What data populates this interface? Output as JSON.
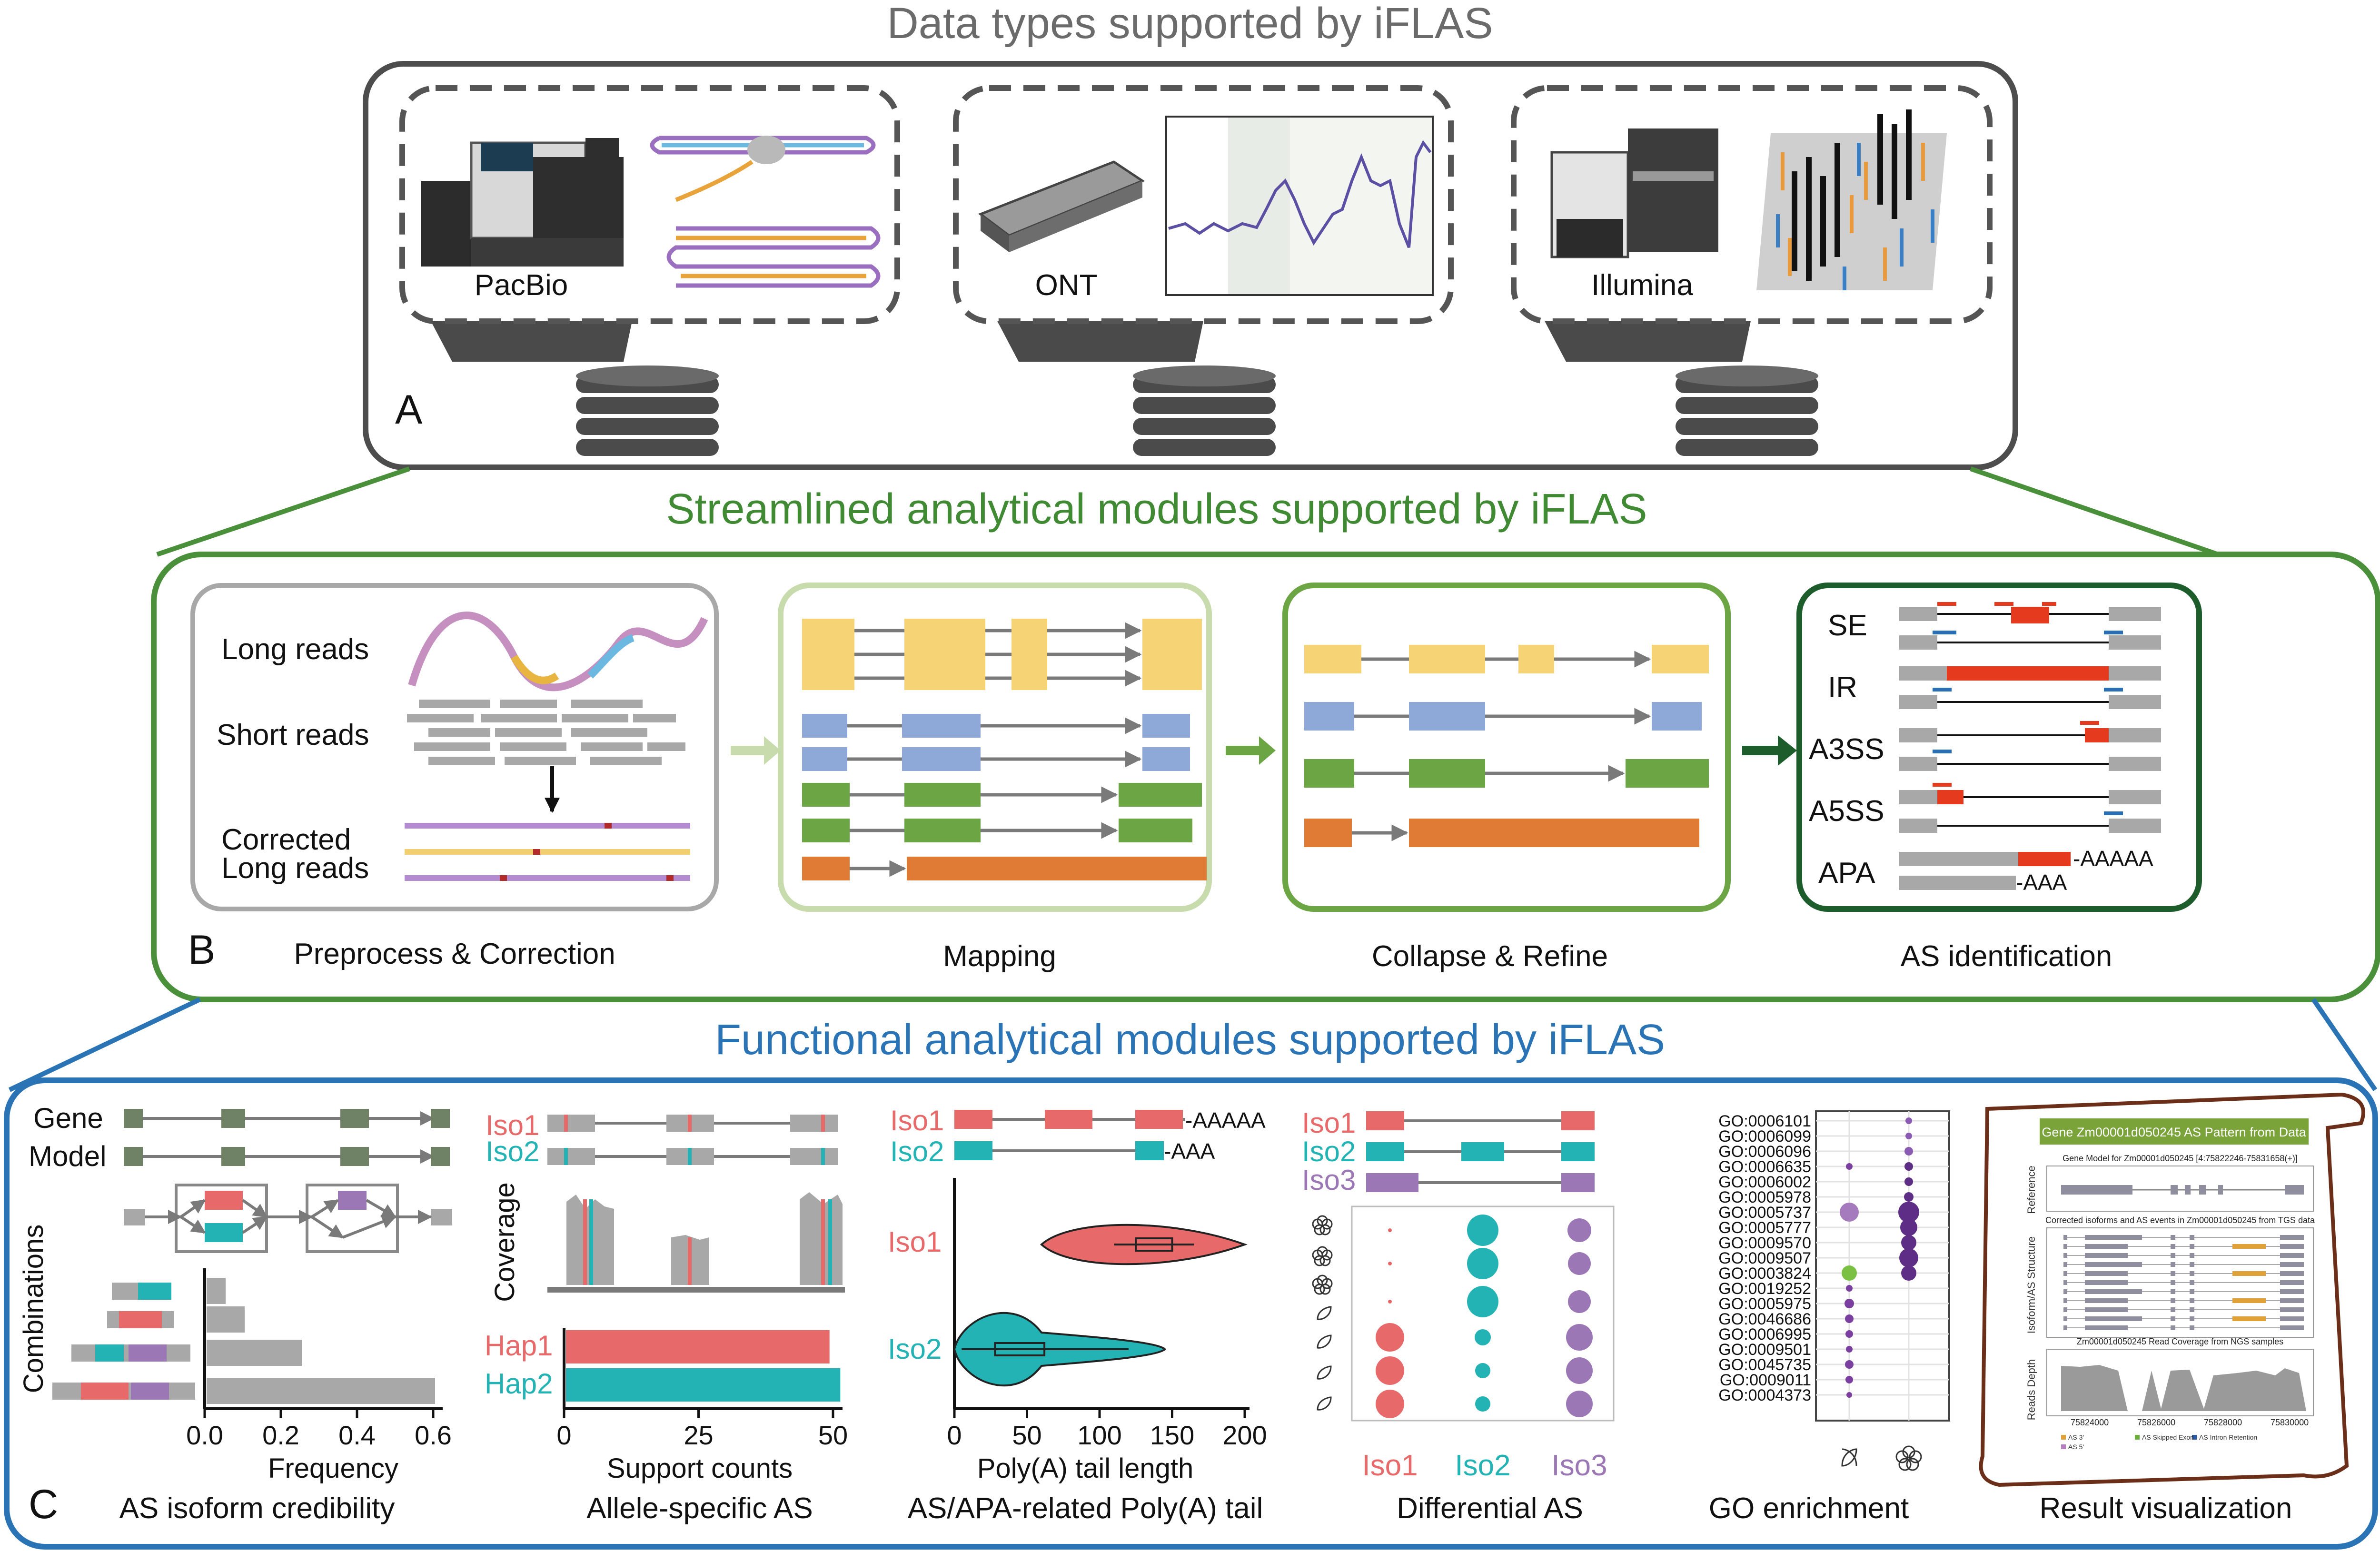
{
  "panel_a": {
    "title": "Data types supported by iFLAS",
    "letter": "A",
    "platforms": [
      {
        "label": "PacBio"
      },
      {
        "label": "ONT"
      },
      {
        "label": "Illumina"
      }
    ]
  },
  "panel_b": {
    "title": "Streamlined analytical modules supported by iFLAS",
    "letter": "B",
    "preprocess": {
      "long_reads": "Long reads",
      "short_reads": "Short reads",
      "corrected_line1": "Corrected",
      "corrected_line2": "Long reads",
      "caption": "Preprocess & Correction"
    },
    "mapping_caption": "Mapping",
    "collapse_caption": "Collapse & Refine",
    "as_identification": {
      "caption": "AS identification",
      "events": [
        "SE",
        "IR",
        "A3SS",
        "A5SS",
        "APA"
      ],
      "polya_long": "-AAAAA",
      "polya_short": "-AAA"
    }
  },
  "panel_c": {
    "title": "Functional analytical modules supported by iFLAS",
    "letter": "C",
    "credibility": {
      "gene": "Gene",
      "model": "Model",
      "ylabel": "Combinations",
      "xlabel": "Frequency",
      "xticks": [
        "0.0",
        "0.2",
        "0.4",
        "0.6"
      ],
      "caption": "AS isoform credibility"
    },
    "allele": {
      "iso1": "Iso1",
      "iso2": "Iso2",
      "coverage": "Coverage",
      "hap1": "Hap1",
      "hap2": "Hap2",
      "xlabel": "Support counts",
      "xticks": [
        "0",
        "25",
        "50"
      ],
      "caption": "Allele-specific AS"
    },
    "polya": {
      "iso1": "Iso1",
      "iso2": "Iso2",
      "tail1": "-AAAAA",
      "tail2": "-AAA",
      "xlabel": "Poly(A) tail length",
      "xticks": [
        "0",
        "50",
        "100",
        "150",
        "200"
      ],
      "caption": "AS/APA-related Poly(A) tail"
    },
    "differential": {
      "iso1": "Iso1",
      "iso2": "Iso2",
      "iso3": "Iso3",
      "xlabels": [
        "Iso1",
        "Iso2",
        "Iso3"
      ],
      "caption": "Differential AS"
    },
    "go": {
      "terms": [
        "GO:0006101",
        "GO:0006099",
        "GO:0006096",
        "GO:0006635",
        "GO:0006002",
        "GO:0005978",
        "GO:0005737",
        "GO:0005777",
        "GO:0009570",
        "GO:0009507",
        "GO:0003824",
        "GO:0019252",
        "GO:0005975",
        "GO:0046686",
        "GO:0006995",
        "GO:0009501",
        "GO:0045735",
        "GO:0009011",
        "GO:0004373"
      ],
      "caption": "GO enrichment"
    },
    "result": {
      "header": "Gene Zm00001d050245 AS Pattern from Data",
      "gene_model": "Gene Model for Zm00001d050245 [4:75822246-75831658(+)]",
      "corrected": "Corrected isoforms and AS events in Zm00001d050245 from TGS data",
      "coverage": "Zm00001d050245 Read Coverage from NGS samples",
      "side_reference": "Reference",
      "side_structure": "Isoform/AS Structure",
      "side_depth": "Reads Depth",
      "xticks": [
        "75824000",
        "75826000",
        "75828000",
        "75830000"
      ],
      "legend": [
        "AS  3'",
        "AS  5'",
        "AS  Skipped Exon",
        "AS  Intron Retention"
      ],
      "caption": "Result visualization"
    }
  },
  "colors": {
    "panel_a_border": "#4d4d4d",
    "panel_b_border": "#4a8f3a",
    "panel_b_title": "#3f8a32",
    "panel_c_border": "#2a74b5",
    "panel_c_title": "#2a74b5",
    "iso_red": "#e8696a",
    "iso_teal": "#23b3b4",
    "iso_purple": "#9b78b5",
    "exon_yellow": "#f6d374",
    "exon_blue": "#8ea8d8",
    "exon_green": "#6ca544",
    "exon_orange": "#e07b35",
    "grey": "#a8a8a8"
  }
}
